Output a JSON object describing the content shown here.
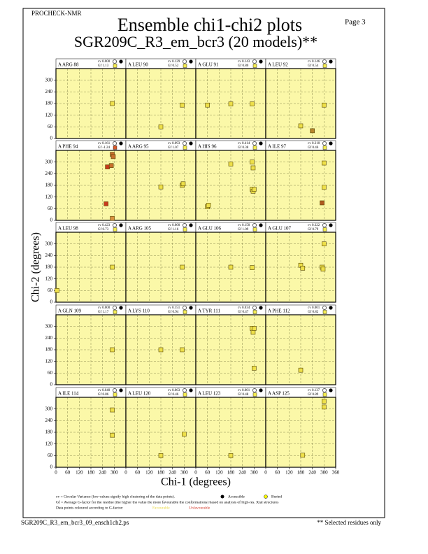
{
  "header": {
    "program": "PROCHECK-NMR",
    "page": "Page  3",
    "title": "Ensemble chi1-chi2 plots",
    "subtitle": "SGR209C_R3_em_bcr3 (20 models)**"
  },
  "axes": {
    "xlabel": "Chi-1 (degrees)",
    "ylabel": "Chi-2 (degrees)",
    "xlim": [
      0,
      360
    ],
    "ylim": [
      0,
      360
    ],
    "xticks": [
      0,
      60,
      120,
      180,
      240,
      300,
      360
    ],
    "yticks": [
      0,
      60,
      120,
      180,
      240,
      300
    ],
    "grid": true
  },
  "chart_data": [
    {
      "type": "scatter",
      "title": "A ARG 88",
      "cv": "cv 0.000",
      "gf": "Gf  1.13",
      "gf_color": "#f4ec50",
      "x": [
        290
      ],
      "y": [
        180
      ],
      "colors": [
        "#eee04a"
      ]
    },
    {
      "type": "scatter",
      "title": "A LEU 90",
      "cv": "cv 0.129",
      "gf": "Gf  0.52",
      "gf_color": "#f4ec50",
      "x": [
        180,
        290
      ],
      "y": [
        60,
        172
      ],
      "colors": [
        "#eee04a",
        "#eee04a"
      ]
    },
    {
      "type": "scatter",
      "title": "A GLU 91",
      "cv": "cv 0.143",
      "gf": "Gf  0.80",
      "gf_color": "#f4ec50",
      "x": [
        60,
        180,
        290
      ],
      "y": [
        172,
        178,
        178
      ],
      "colors": [
        "#eee04a",
        "#eee04a",
        "#eee04a"
      ]
    },
    {
      "type": "scatter",
      "title": "A LEU 92",
      "cv": "cv 0.146",
      "gf": "Gf  0.54",
      "gf_color": "#f4ec50",
      "x": [
        180,
        240,
        300
      ],
      "y": [
        65,
        40,
        172
      ],
      "colors": [
        "#eee04a",
        "#b8862c",
        "#eee04a"
      ]
    },
    {
      "type": "scatter",
      "title": "A PHE 94",
      "cv": "cv 0.161",
      "gf": "Gf -1.24",
      "gf_color": "#d85a2a",
      "x": [
        290,
        295,
        265,
        285,
        258,
        290
      ],
      "y": [
        340,
        328,
        275,
        282,
        85,
        10
      ],
      "colors": [
        "#c8702c",
        "#c8702c",
        "#c83a1c",
        "#c8702c",
        "#c83a1c",
        "#d89040"
      ]
    },
    {
      "type": "scatter",
      "title": "A ARG 95",
      "cv": "cv 0.093",
      "gf": "Gf  1.07",
      "gf_color": "#f4ec50",
      "x": [
        180,
        290,
        295
      ],
      "y": [
        172,
        180,
        188
      ],
      "colors": [
        "#eee04a",
        "#eee04a",
        "#eee04a"
      ]
    },
    {
      "type": "scatter",
      "title": "A HIS 96",
      "cv": "cv 0.414",
      "gf": "Gf  0.38",
      "gf_color": "#f4ec50",
      "x": [
        60,
        65,
        180,
        290,
        295,
        290,
        295,
        300
      ],
      "y": [
        70,
        78,
        290,
        300,
        270,
        160,
        150,
        160
      ],
      "colors": [
        "#eee04a",
        "#eee04a",
        "#eee04a",
        "#eee04a",
        "#eee04a",
        "#eee04a",
        "#eee04a",
        "#eee04a"
      ]
    },
    {
      "type": "scatter",
      "title": "A ILE 97",
      "cv": "cv 0.210",
      "gf": "Gf  0.46",
      "gf_color": "#f4ec50",
      "x": [
        300,
        300,
        290
      ],
      "y": [
        295,
        170,
        90
      ],
      "colors": [
        "#eee04a",
        "#eee04a",
        "#b05a20"
      ]
    },
    {
      "type": "scatter",
      "title": "A LEU 98",
      "cv": "cv 0.423",
      "gf": "Gf  0.73",
      "gf_color": "#f4ec50",
      "x": [
        5,
        290
      ],
      "y": [
        60,
        180
      ],
      "colors": [
        "#eee04a",
        "#eee04a"
      ]
    },
    {
      "type": "scatter",
      "title": "A ARG 105",
      "cv": "cv 0.000",
      "gf": "Gf  1.16",
      "gf_color": "#f4ec50",
      "x": [
        290
      ],
      "y": [
        180
      ],
      "colors": [
        "#eee04a"
      ]
    },
    {
      "type": "scatter",
      "title": "A GLU 106",
      "cv": "cv 0.150",
      "gf": "Gf  1.09",
      "gf_color": "#f4ec50",
      "x": [
        180,
        290
      ],
      "y": [
        180,
        178
      ],
      "colors": [
        "#eee04a",
        "#eee04a"
      ]
    },
    {
      "type": "scatter",
      "title": "A GLU 107",
      "cv": "cv 0.322",
      "gf": "Gf  0.79",
      "gf_color": "#f4ec50",
      "x": [
        300,
        180,
        190,
        290,
        295
      ],
      "y": [
        300,
        190,
        175,
        180,
        170
      ],
      "colors": [
        "#eee04a",
        "#eee04a",
        "#eee04a",
        "#eee04a",
        "#eee04a"
      ]
    },
    {
      "type": "scatter",
      "title": "A GLN 109",
      "cv": "cv 0.000",
      "gf": "Gf  1.17",
      "gf_color": "#f4ec50",
      "x": [
        290
      ],
      "y": [
        180
      ],
      "colors": [
        "#eee04a"
      ]
    },
    {
      "type": "scatter",
      "title": "A LYS 110",
      "cv": "cv 0.151",
      "gf": "Gf  0.94",
      "gf_color": "#f4ec50",
      "x": [
        180,
        290
      ],
      "y": [
        180,
        180
      ],
      "colors": [
        "#eee04a",
        "#eee04a"
      ]
    },
    {
      "type": "scatter",
      "title": "A TYR 111",
      "cv": "cv 0.034",
      "gf": "Gf  0.47",
      "gf_color": "#f4ec50",
      "x": [
        290,
        295,
        300,
        300
      ],
      "y": [
        290,
        270,
        290,
        85
      ],
      "colors": [
        "#eee04a",
        "#eee04a",
        "#eee04a",
        "#eee04a"
      ]
    },
    {
      "type": "scatter",
      "title": "A PHE 112",
      "cv": "cv 0.001",
      "gf": "Gf  0.82",
      "gf_color": "#f4ec50",
      "x": [
        180
      ],
      "y": [
        75
      ],
      "colors": [
        "#eee04a"
      ]
    },
    {
      "type": "scatter",
      "title": "A ILE 114",
      "cv": "cv 0.040",
      "gf": "Gf  0.86",
      "gf_color": "#f4ec50",
      "x": [
        290,
        290
      ],
      "y": [
        295,
        165
      ],
      "colors": [
        "#eee04a",
        "#eee04a"
      ]
    },
    {
      "type": "scatter",
      "title": "A LEU 120",
      "cv": "cv 0.063",
      "gf": "Gf  0.46",
      "gf_color": "#f4ec50",
      "x": [
        180,
        300
      ],
      "y": [
        60,
        170
      ],
      "colors": [
        "#eee04a",
        "#eee04a"
      ]
    },
    {
      "type": "scatter",
      "title": "A LEU 123",
      "cv": "cv 0.001",
      "gf": "Gf  0.48",
      "gf_color": "#f4ec50",
      "x": [
        180
      ],
      "y": [
        60
      ],
      "colors": [
        "#eee04a"
      ]
    },
    {
      "type": "scatter",
      "title": "A ASP 125",
      "cv": "cv 0.137",
      "gf": "Gf  0.89",
      "gf_color": "#f4ec50",
      "x": [
        300,
        300,
        190
      ],
      "y": [
        340,
        310,
        62
      ],
      "colors": [
        "#eee04a",
        "#eee04a",
        "#eee04a"
      ]
    }
  ],
  "notes": {
    "cv_note": "cv = Circular Variance (low values signify high clustering of the data points).",
    "accessible": "Accessible",
    "buried": "Buried",
    "gf_note": "Gf = Average G-factor for the residue (the higher the value the more favourable the conformations) based on analysis of high-res. Xtal structures",
    "colour_note": "Data points coloured according to G-factor:",
    "favourable": "Favourable",
    "unfavourable": "Unfavourable"
  },
  "footer": {
    "file": "SGR209C_R3_em_bcr3_09_ensch1ch2.ps",
    "selected": "** Selected residues only"
  }
}
